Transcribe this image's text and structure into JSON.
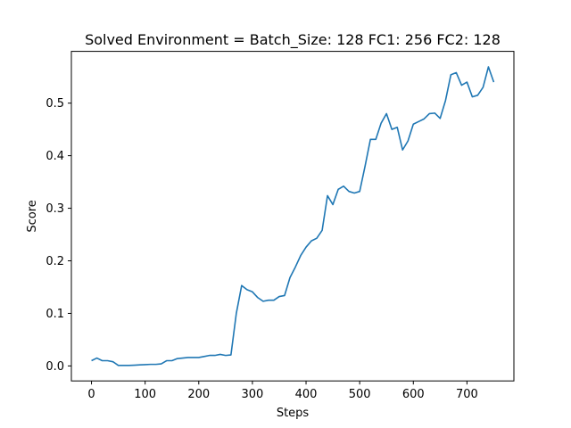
{
  "chart_data": {
    "type": "line",
    "title": "Solved Environment = Batch_Size: 128   FC1: 256   FC2: 128",
    "xlabel": "Steps",
    "ylabel": "Score",
    "xlim": [
      -37.5,
      787.5
    ],
    "ylim": [
      -0.0285,
      0.5985
    ],
    "xticks": [
      0,
      100,
      200,
      300,
      400,
      500,
      600,
      700
    ],
    "yticks": [
      0.0,
      0.1,
      0.2,
      0.3,
      0.4,
      0.5
    ],
    "ytick_labels": [
      "0.0",
      "0.1",
      "0.2",
      "0.3",
      "0.4",
      "0.5"
    ],
    "grid": false,
    "series": [
      {
        "color": "#1f77b4",
        "x": [
          0,
          10,
          20,
          30,
          40,
          50,
          60,
          70,
          80,
          90,
          100,
          110,
          120,
          130,
          140,
          150,
          160,
          170,
          180,
          190,
          200,
          210,
          220,
          230,
          240,
          250,
          260,
          270,
          280,
          290,
          300,
          310,
          320,
          330,
          340,
          350,
          360,
          370,
          380,
          390,
          400,
          410,
          420,
          430,
          440,
          450,
          460,
          470,
          480,
          490,
          500,
          510,
          520,
          530,
          540,
          550,
          560,
          570,
          580,
          590,
          600,
          610,
          620,
          630,
          640,
          650,
          660,
          670,
          680,
          690,
          700,
          710,
          720,
          730,
          740,
          750
        ],
        "y": [
          0.01,
          0.015,
          0.01,
          0.01,
          0.008,
          0.001,
          0.001,
          0.001,
          0.0015,
          0.002,
          0.0025,
          0.003,
          0.003,
          0.004,
          0.01,
          0.01,
          0.014,
          0.015,
          0.016,
          0.016,
          0.016,
          0.018,
          0.02,
          0.02,
          0.022,
          0.02,
          0.021,
          0.1,
          0.153,
          0.145,
          0.141,
          0.13,
          0.123,
          0.125,
          0.125,
          0.132,
          0.134,
          0.168,
          0.188,
          0.21,
          0.226,
          0.238,
          0.243,
          0.258,
          0.324,
          0.307,
          0.336,
          0.342,
          0.332,
          0.329,
          0.332,
          0.38,
          0.431,
          0.431,
          0.462,
          0.48,
          0.45,
          0.454,
          0.411,
          0.428,
          0.46,
          0.465,
          0.47,
          0.48,
          0.481,
          0.471,
          0.505,
          0.554,
          0.558,
          0.534,
          0.54,
          0.512,
          0.515,
          0.53,
          0.569,
          0.54
        ]
      }
    ]
  }
}
